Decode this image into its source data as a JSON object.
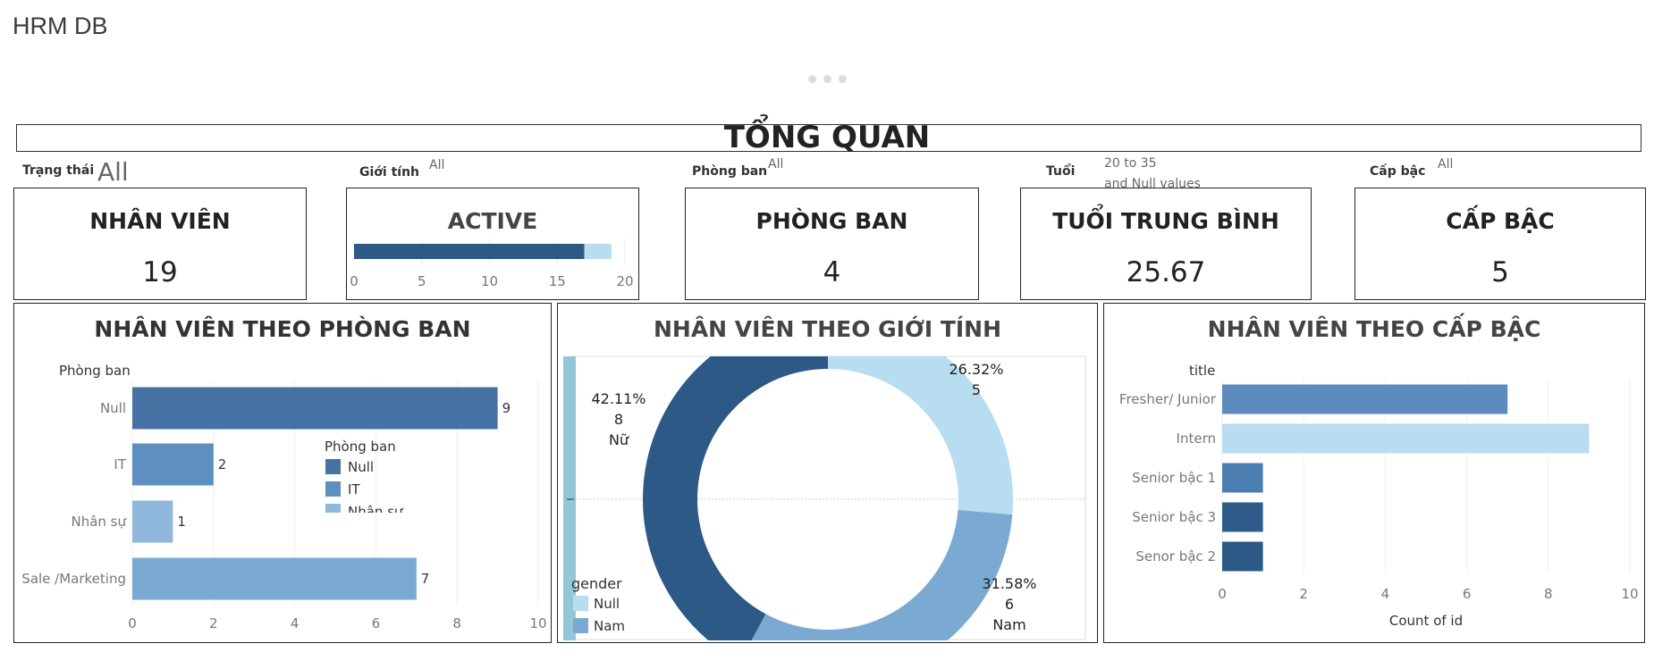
{
  "app": {
    "title": "HRM DB"
  },
  "section": {
    "title": "TỔNG QUAN"
  },
  "filters": [
    {
      "label": "Trạng thái",
      "value": "All"
    },
    {
      "label": "Giới tính",
      "value": "All"
    },
    {
      "label": "Phòng ban",
      "value": "All"
    },
    {
      "label": "Tuổi",
      "value": "20 to 35",
      "value2": "and Null values"
    },
    {
      "label": "Cấp bậc",
      "value": "All"
    }
  ],
  "kpis": {
    "employees": {
      "title": "NHÂN VIÊN",
      "value": "19"
    },
    "active": {
      "title": "ACTIVE"
    },
    "departments": {
      "title": "PHÒNG BAN",
      "value": "4"
    },
    "avg_age": {
      "title": "TUỔI TRUNG BÌNH",
      "value": "25.67"
    },
    "levels": {
      "title": "CẤP BẬC",
      "value": "5"
    }
  },
  "panels": {
    "dept": {
      "title": "NHÂN VIÊN THEO PHÒNG BAN"
    },
    "gender": {
      "title": "NHÂN VIÊN THEO GIỚI TÍNH"
    },
    "level": {
      "title": "NHÂN VIÊN THEO CẤP BẬC"
    }
  },
  "colors": {
    "dark_blue": "#2c5985",
    "mid_blue": "#4572a3",
    "blue": "#5f8fc0",
    "light_blue": "#8fb8dc",
    "sky": "#7aaad2",
    "pale": "#b8dcf0",
    "teal": "#93c7d6"
  },
  "chart_data": [
    {
      "id": "active",
      "type": "bar",
      "orientation": "horizontal",
      "stacked": true,
      "series": [
        {
          "values": [
            17
          ],
          "color": "#2c5985"
        },
        {
          "values": [
            2
          ],
          "color": "#b8dcf0"
        }
      ],
      "xlim": [
        0,
        20
      ],
      "xticks": [
        "0",
        "5",
        "10",
        "15",
        "20"
      ]
    },
    {
      "id": "dept",
      "type": "bar",
      "orientation": "horizontal",
      "ylabel": "Phòng ban",
      "categories": [
        "Null",
        "IT",
        "Nhân sự",
        "Sale /Marketing"
      ],
      "values": [
        9,
        2,
        1,
        7
      ],
      "value_labels": [
        "9",
        "2",
        "1",
        "7"
      ],
      "colors": [
        "#4572a3",
        "#5f8fc0",
        "#8fb8dc",
        "#7aaad2"
      ],
      "xlim": [
        0,
        10
      ],
      "xticks": [
        "0",
        "2",
        "4",
        "6",
        "8",
        "10"
      ],
      "legend": {
        "title": "Phòng ban",
        "placement": "center-right",
        "items": [
          {
            "label": "Null",
            "color": "#4572a3"
          },
          {
            "label": "IT",
            "color": "#5f8fc0"
          },
          {
            "label": "Nhân sự",
            "color": "#8fb8dc"
          }
        ]
      }
    },
    {
      "id": "gender",
      "type": "pie",
      "donut": true,
      "slices": [
        {
          "label": "Null",
          "value": 5,
          "percent": 26.32,
          "pct_label": "26.32%",
          "count_label": "5",
          "name_label": "",
          "color": "#b8dcf0"
        },
        {
          "label": "Nam",
          "value": 6,
          "percent": 31.58,
          "pct_label": "31.58%",
          "count_label": "6",
          "name_label": "Nam",
          "color": "#7aaad2"
        },
        {
          "label": "Nữ",
          "value": 8,
          "percent": 42.11,
          "pct_label": "42.11%",
          "count_label": "8",
          "name_label": "Nữ",
          "color": "#2c5985"
        }
      ],
      "legend": {
        "title": "gender",
        "placement": "bottom-left",
        "items": [
          {
            "label": "Null",
            "color": "#b8dcf0"
          },
          {
            "label": "Nam",
            "color": "#7aaad2"
          }
        ]
      }
    },
    {
      "id": "level",
      "type": "bar",
      "orientation": "horizontal",
      "ylabel": "title",
      "xlabel": "Count of id",
      "categories": [
        "Fresher/ Junior",
        "Intern",
        "Senior bậc 1",
        "Senior bậc 3",
        "Senor bậc 2"
      ],
      "values": [
        7,
        9,
        1,
        1,
        1
      ],
      "colors": [
        "#5b8cbd",
        "#b8dcf0",
        "#4a7db0",
        "#2f5c8a",
        "#2c5985"
      ],
      "xlim": [
        0,
        10
      ],
      "xticks": [
        "0",
        "2",
        "4",
        "6",
        "8",
        "10"
      ]
    }
  ]
}
